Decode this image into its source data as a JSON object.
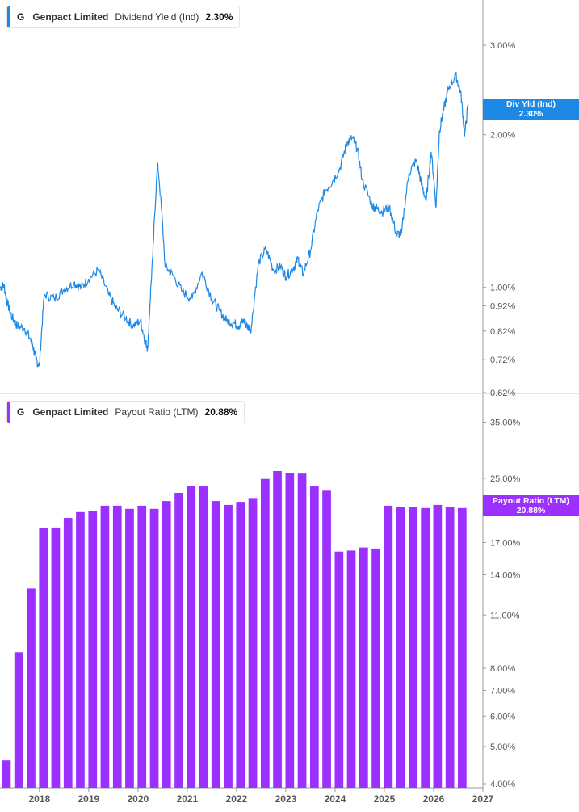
{
  "colors": {
    "yield": "#1e88e5",
    "payout": "#9b30ff",
    "axis": "#999999",
    "grid_text": "#555555"
  },
  "top_panel": {
    "legend": {
      "ticker": "G",
      "company": "Genpact Limited",
      "metric": "Dividend Yield (Ind)",
      "value": "2.30%"
    },
    "tag": {
      "label": "Div Yld (Ind)",
      "value": "2.30%"
    }
  },
  "bottom_panel": {
    "legend": {
      "ticker": "G",
      "company": "Genpact Limited",
      "metric": "Payout Ratio (LTM)",
      "value": "20.88%"
    },
    "tag": {
      "label": "Payout Ratio (LTM)",
      "value": "20.88%"
    }
  },
  "chart_data": [
    {
      "type": "line",
      "title": "Dividend Yield (Ind)",
      "scale": "log",
      "ylim": [
        0.62,
        3.4
      ],
      "xlim": [
        2017.2,
        2027.0
      ],
      "yticks": [
        3.0,
        2.0,
        1.0,
        0.92,
        0.82,
        0.72,
        0.62
      ],
      "ytick_labels": [
        "3.00%",
        "2.00%",
        "1.00%",
        "0.92%",
        "0.82%",
        "0.72%",
        "0.62%"
      ],
      "series": [
        {
          "x": [
            2017.2,
            2017.28,
            2017.35,
            2017.45,
            2017.55,
            2017.7,
            2017.85,
            2017.93,
            2018.0,
            2018.1,
            2018.3,
            2018.5,
            2018.7,
            2018.85,
            2019.0,
            2019.2,
            2019.4,
            2019.55,
            2019.75,
            2019.9,
            2020.05,
            2020.15,
            2020.2,
            2020.3,
            2020.4,
            2020.55,
            2020.7,
            2020.9,
            2021.1,
            2021.3,
            2021.5,
            2021.65,
            2021.8,
            2021.95,
            2022.05,
            2022.15,
            2022.2,
            2022.3,
            2022.45,
            2022.6,
            2022.75,
            2022.9,
            2023.0,
            2023.15,
            2023.25,
            2023.35,
            2023.5,
            2023.65,
            2023.8,
            2023.95,
            2024.1,
            2024.25,
            2024.35,
            2024.45,
            2024.55,
            2024.75,
            2024.85,
            2024.95,
            2025.1,
            2025.25,
            2025.35,
            2025.5,
            2025.65,
            2025.75,
            2025.85,
            2025.95,
            2026.05,
            2026.12,
            2026.2,
            2026.3,
            2026.45,
            2026.55,
            2026.63,
            2026.7
          ],
          "values": [
            1.0,
            1.01,
            0.93,
            0.87,
            0.84,
            0.83,
            0.78,
            0.72,
            0.7,
            0.97,
            0.95,
            0.99,
            1.02,
            1.0,
            1.04,
            1.08,
            0.97,
            0.91,
            0.87,
            0.84,
            0.86,
            0.78,
            0.76,
            1.15,
            1.76,
            1.1,
            1.06,
            0.98,
            0.95,
            1.07,
            0.95,
            0.9,
            0.86,
            0.85,
            0.84,
            0.86,
            0.84,
            0.83,
            1.12,
            1.19,
            1.08,
            1.1,
            1.05,
            1.09,
            1.14,
            1.06,
            1.18,
            1.42,
            1.55,
            1.62,
            1.72,
            1.94,
            1.97,
            1.88,
            1.63,
            1.45,
            1.43,
            1.41,
            1.44,
            1.27,
            1.28,
            1.68,
            1.78,
            1.6,
            1.48,
            1.85,
            1.44,
            2.04,
            2.23,
            2.46,
            2.62,
            2.42,
            1.99,
            2.3
          ]
        }
      ]
    },
    {
      "type": "bar",
      "title": "Payout Ratio (LTM)",
      "scale": "log",
      "ylim": [
        4.0,
        37.0
      ],
      "yticks": [
        35.0,
        25.0,
        17.0,
        14.0,
        11.0,
        8.0,
        7.0,
        6.0,
        5.0,
        4.0
      ],
      "ytick_labels": [
        "35.00%",
        "25.00%",
        "17.00%",
        "14.00%",
        "11.00%",
        "8.00%",
        "7.00%",
        "6.00%",
        "5.00%",
        "4.00%"
      ],
      "xlim": [
        2017.2,
        2027.0
      ],
      "xticks": [
        2018,
        2019,
        2020,
        2021,
        2022,
        2023,
        2024,
        2025,
        2026,
        2027
      ],
      "x": [
        2017.33,
        2017.58,
        2017.83,
        2018.08,
        2018.33,
        2018.58,
        2018.83,
        2019.08,
        2019.33,
        2019.58,
        2019.83,
        2020.08,
        2020.33,
        2020.58,
        2020.83,
        2021.08,
        2021.33,
        2021.58,
        2021.83,
        2022.08,
        2022.33,
        2022.58,
        2022.83,
        2023.08,
        2023.33,
        2023.58,
        2023.83,
        2024.08,
        2024.33,
        2024.58,
        2024.83,
        2025.08,
        2025.33,
        2025.58,
        2025.83,
        2026.08,
        2026.33,
        2026.58
      ],
      "values": [
        4.6,
        8.8,
        12.9,
        18.5,
        18.6,
        19.7,
        20.4,
        20.5,
        21.2,
        21.2,
        20.8,
        21.2,
        20.8,
        21.8,
        22.9,
        23.8,
        23.9,
        21.8,
        21.3,
        21.7,
        22.2,
        24.9,
        26.1,
        25.8,
        25.7,
        23.9,
        23.2,
        16.1,
        16.2,
        16.5,
        16.4,
        21.2,
        21.0,
        21.0,
        20.9,
        21.3,
        21.0,
        20.9
      ]
    }
  ]
}
